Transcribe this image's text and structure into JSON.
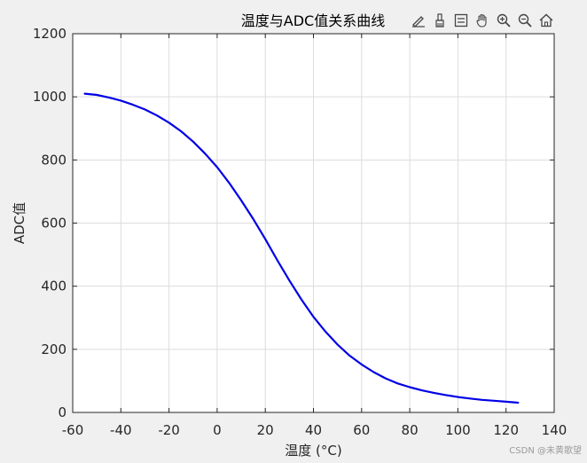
{
  "toolbar": {
    "icons": [
      "data-tips-icon",
      "brush-icon",
      "legend-icon",
      "pan-icon",
      "zoom-in-icon",
      "zoom-out-icon",
      "home-icon"
    ]
  },
  "watermark": "CSDN @未黄歌望",
  "colors": {
    "line": "#0000e6",
    "axes": "#262626",
    "grid": "#dcdcdc",
    "figure_bg": "#f0f0f0",
    "plot_bg": "#ffffff"
  },
  "chart_data": {
    "type": "line",
    "title": "温度与ADC值关系曲线",
    "xlabel": "温度 (°C)",
    "ylabel": "ADC值",
    "xlim": [
      -60,
      140
    ],
    "ylim": [
      0,
      1200
    ],
    "grid": true,
    "x_ticks": [
      -60,
      -40,
      -20,
      0,
      20,
      40,
      60,
      80,
      100,
      120,
      140
    ],
    "y_ticks": [
      0,
      200,
      400,
      600,
      800,
      1000,
      1200
    ],
    "series": [
      {
        "x": [
          -55,
          -50,
          -45,
          -40,
          -35,
          -30,
          -25,
          -20,
          -15,
          -10,
          -5,
          0,
          5,
          10,
          15,
          20,
          25,
          30,
          35,
          40,
          45,
          50,
          55,
          60,
          65,
          70,
          75,
          80,
          85,
          90,
          95,
          100,
          105,
          110,
          115,
          120,
          125
        ],
        "y": [
          1010,
          1006,
          998,
          988,
          975,
          960,
          941,
          918,
          891,
          858,
          820,
          777,
          727,
          672,
          613,
          549,
          482,
          418,
          358,
          303,
          256,
          215,
          180,
          152,
          128,
          108,
          92,
          80,
          70,
          62,
          55,
          49,
          44,
          40,
          37,
          34,
          31
        ]
      }
    ]
  }
}
